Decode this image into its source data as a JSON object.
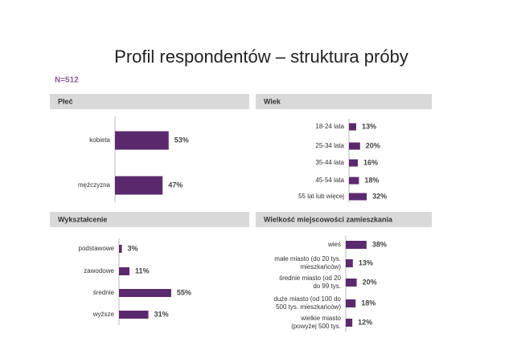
{
  "title": "Profil respondentów – struktura próby",
  "sample": "N=512",
  "chart_data": [
    {
      "type": "bar",
      "orientation": "horizontal",
      "title": "Płeć",
      "color": "#5b2a6e",
      "xlim": [
        0,
        100
      ],
      "categories": [
        "kobieta",
        "mężczyzna"
      ],
      "values": [
        53,
        47
      ],
      "value_labels": [
        "53%",
        "47%"
      ]
    },
    {
      "type": "bar",
      "orientation": "horizontal",
      "title": "Wiek",
      "color": "#5b2a6e",
      "xlim": [
        0,
        100
      ],
      "categories": [
        "18-24 lata",
        "25-34 lata",
        "35-44 lata",
        "45-54 lata",
        "55 lat lub więcej"
      ],
      "values": [
        13,
        20,
        16,
        18,
        32
      ],
      "value_labels": [
        "13%",
        "20%",
        "16%",
        "18%",
        "32%"
      ]
    },
    {
      "type": "bar",
      "orientation": "horizontal",
      "title": "Wykształcenie",
      "color": "#5b2a6e",
      "xlim": [
        0,
        100
      ],
      "categories": [
        "podstawowe",
        "zawodowe",
        "średnie",
        "wyższe"
      ],
      "values": [
        3,
        11,
        55,
        31
      ],
      "value_labels": [
        "3%",
        "11%",
        "55%",
        "31%"
      ]
    },
    {
      "type": "bar",
      "orientation": "horizontal",
      "title": "Wielkość miejscowości zamieszkania",
      "color": "#5b2a6e",
      "xlim": [
        0,
        100
      ],
      "categories": [
        "wieś",
        "małe miasto (do 20 tys.\nmieszkańców)",
        "średnie miasto (od 20\ndo 99 tys.",
        "duże miasto (od 100 do\n500 tys. mieszkańców)",
        "wielkie miasto\n(powyżej 500 tys."
      ],
      "values": [
        38,
        13,
        20,
        18,
        12
      ],
      "value_labels": [
        "38%",
        "13%",
        "20%",
        "18%",
        "12%"
      ]
    }
  ]
}
